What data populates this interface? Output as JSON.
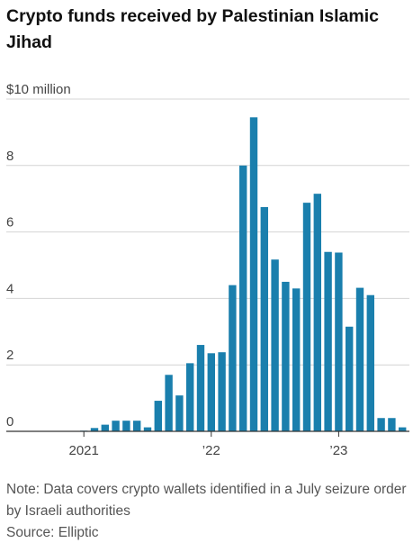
{
  "colors": {
    "bar": "#1a7fad",
    "grid": "#d4d4d4",
    "axis": "#333333"
  },
  "chart_data": {
    "type": "bar",
    "title": "Crypto funds received by Palestinian Islamic Jihad",
    "ylabel": "$10 million",
    "ylim": [
      0,
      10
    ],
    "grid": true,
    "y_ticks": [
      {
        "value": 0,
        "label": "0"
      },
      {
        "value": 2,
        "label": "2"
      },
      {
        "value": 4,
        "label": "4"
      },
      {
        "value": 6,
        "label": "6"
      },
      {
        "value": 8,
        "label": "8"
      },
      {
        "value": 10,
        "label": "$10 million"
      }
    ],
    "x_ticks": [
      {
        "index": 0,
        "label": "2021"
      },
      {
        "index": 12,
        "label": "’22"
      },
      {
        "index": 24,
        "label": "’23"
      }
    ],
    "categories": [
      "2021-01",
      "2021-02",
      "2021-03",
      "2021-04",
      "2021-05",
      "2021-06",
      "2021-07",
      "2021-08",
      "2021-09",
      "2021-10",
      "2021-11",
      "2021-12",
      "2022-01",
      "2022-02",
      "2022-03",
      "2022-04",
      "2022-05",
      "2022-06",
      "2022-07",
      "2022-08",
      "2022-09",
      "2022-10",
      "2022-11",
      "2022-12",
      "2023-01",
      "2023-02",
      "2023-03",
      "2023-04",
      "2023-05",
      "2023-06",
      "2023-07"
    ],
    "values": [
      0.02,
      0.1,
      0.2,
      0.32,
      0.32,
      0.32,
      0.12,
      0.92,
      1.7,
      1.08,
      2.05,
      2.6,
      2.35,
      2.38,
      4.4,
      8.0,
      9.45,
      6.75,
      5.17,
      4.5,
      4.3,
      6.88,
      7.15,
      5.4,
      5.38,
      3.15,
      4.32,
      4.1,
      0.4,
      0.4,
      0.12
    ]
  },
  "footer": {
    "note": "Note: Data covers crypto wallets identified in a July seizure order by Israeli authorities",
    "source": "Source: Elliptic"
  }
}
